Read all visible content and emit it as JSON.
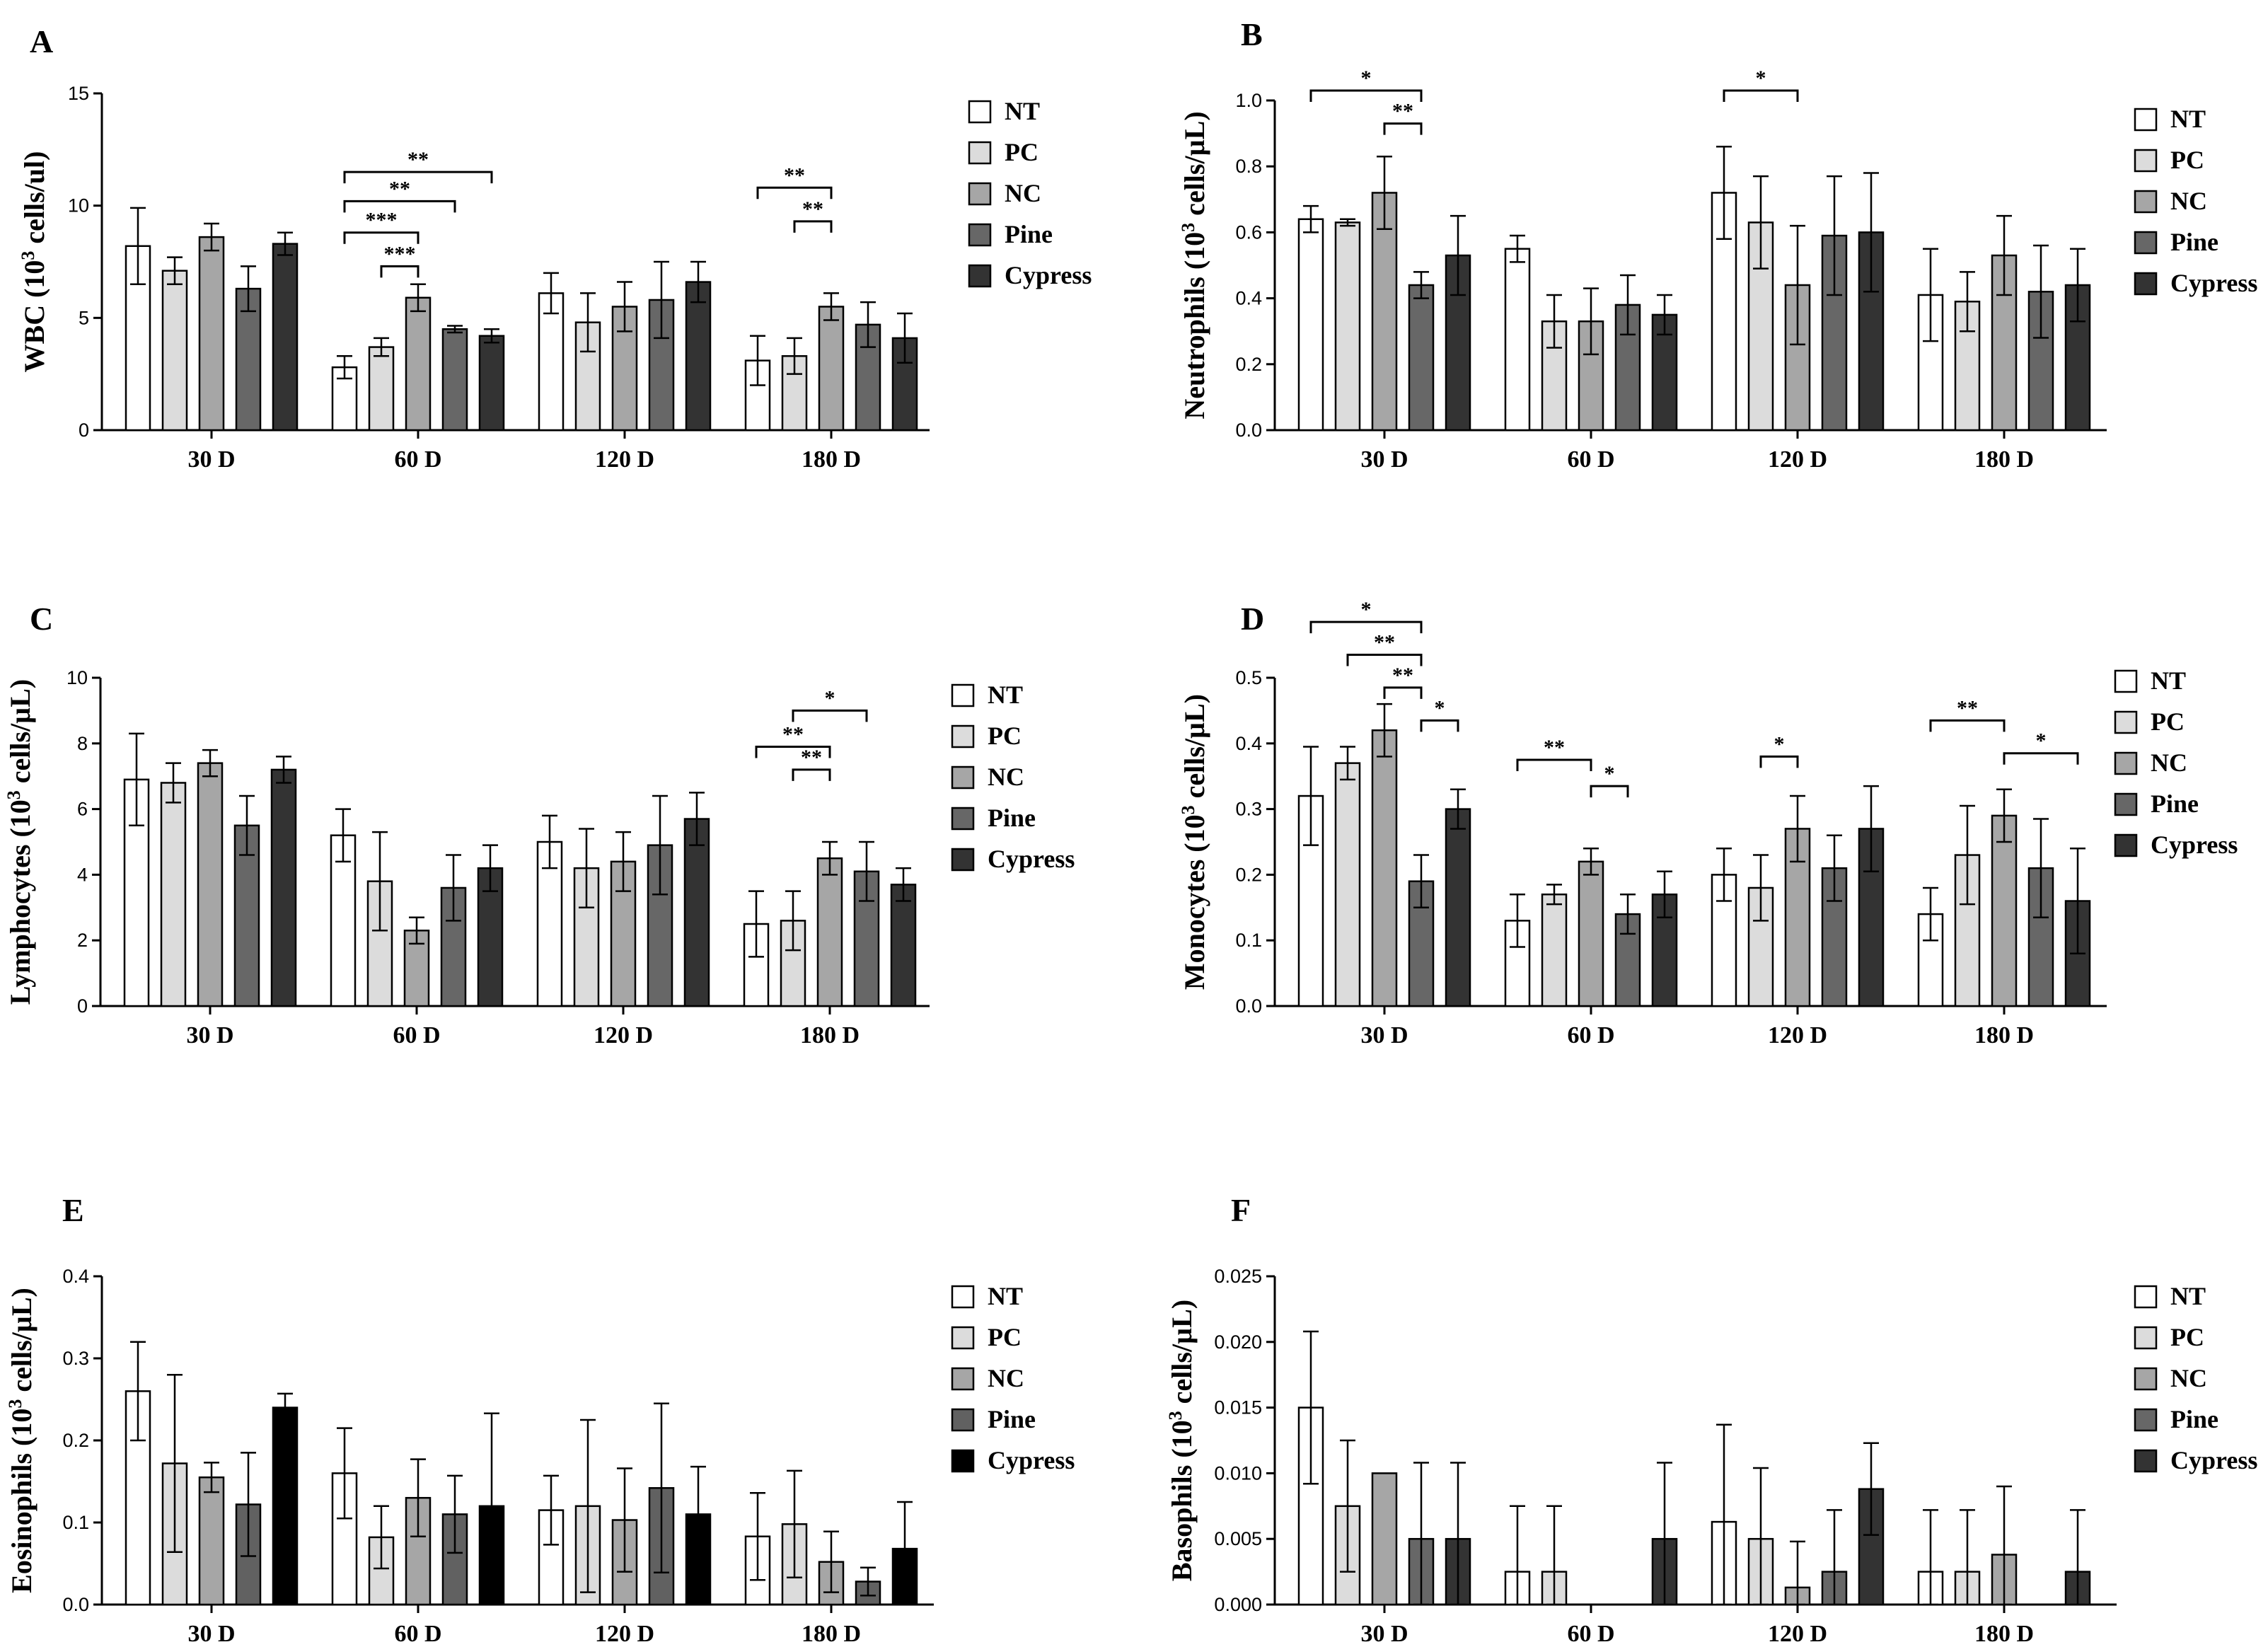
{
  "figure": {
    "categories": [
      "30 D",
      "60 D",
      "120 D",
      "180 D"
    ],
    "legend": [
      {
        "name": "NT",
        "color": "#ffffff"
      },
      {
        "name": "PC",
        "color": "#dcdcdc"
      },
      {
        "name": "NC",
        "color": "#a6a6a6"
      },
      {
        "name": "Pine",
        "color": "#676767"
      },
      {
        "name": "Cypress",
        "color": "#333333"
      }
    ]
  },
  "chart_data": [
    {
      "type": "bar",
      "panel": "A",
      "ylabel": "WBC (10",
      "ylabel_sup": "3",
      "ylabel_rest": " cells/ul)",
      "ylim": [
        0,
        15
      ],
      "yticks": [
        "0",
        "5",
        "10",
        "15"
      ],
      "ytick_values": [
        0,
        5,
        10,
        15
      ],
      "categories": [
        "30 D",
        "60 D",
        "120 D",
        "180 D"
      ],
      "series": [
        {
          "name": "NT",
          "values": [
            8.2,
            2.8,
            6.1,
            3.1
          ],
          "errors": [
            1.7,
            0.5,
            0.9,
            1.1
          ]
        },
        {
          "name": "PC",
          "values": [
            7.1,
            3.7,
            4.8,
            3.3
          ],
          "errors": [
            0.6,
            0.4,
            1.3,
            0.8
          ]
        },
        {
          "name": "NC",
          "values": [
            8.6,
            5.9,
            5.5,
            5.5
          ],
          "errors": [
            0.6,
            0.6,
            1.1,
            0.6
          ]
        },
        {
          "name": "Pine",
          "values": [
            6.3,
            4.5,
            5.8,
            4.7
          ],
          "errors": [
            1.0,
            0.15,
            1.7,
            1.0
          ]
        },
        {
          "name": "Cypress",
          "values": [
            8.3,
            4.2,
            6.6,
            4.1
          ],
          "errors": [
            0.5,
            0.3,
            0.9,
            1.1
          ]
        }
      ],
      "significance": [
        {
          "group": 1,
          "from": 0,
          "to": 4,
          "label": "**",
          "y": 11.5
        },
        {
          "group": 1,
          "from": 0,
          "to": 3,
          "label": "**",
          "y": 10.2
        },
        {
          "group": 1,
          "from": 0,
          "to": 2,
          "label": "***",
          "y": 8.8
        },
        {
          "group": 1,
          "from": 1,
          "to": 2,
          "label": "***",
          "y": 7.3
        },
        {
          "group": 3,
          "from": 0,
          "to": 2,
          "label": "**",
          "y": 10.8
        },
        {
          "group": 3,
          "from": 1,
          "to": 2,
          "label": "**",
          "y": 9.3
        }
      ]
    },
    {
      "type": "bar",
      "panel": "B",
      "ylabel": "Neutrophils (10",
      "ylabel_sup": "3",
      "ylabel_rest": " cells/µL)",
      "ylim": [
        0,
        1.0
      ],
      "yticks": [
        "0.0",
        "0.2",
        "0.4",
        "0.6",
        "0.8",
        "1.0"
      ],
      "ytick_values": [
        0,
        0.2,
        0.4,
        0.6,
        0.8,
        1.0
      ],
      "categories": [
        "30 D",
        "60 D",
        "120 D",
        "180 D"
      ],
      "series": [
        {
          "name": "NT",
          "values": [
            0.64,
            0.55,
            0.72,
            0.41
          ],
          "errors": [
            0.04,
            0.04,
            0.14,
            0.14
          ]
        },
        {
          "name": "PC",
          "values": [
            0.63,
            0.33,
            0.63,
            0.39
          ],
          "errors": [
            0.01,
            0.08,
            0.14,
            0.09
          ]
        },
        {
          "name": "NC",
          "values": [
            0.72,
            0.33,
            0.44,
            0.53
          ],
          "errors": [
            0.11,
            0.1,
            0.18,
            0.12
          ]
        },
        {
          "name": "Pine",
          "values": [
            0.44,
            0.38,
            0.59,
            0.42
          ],
          "errors": [
            0.04,
            0.09,
            0.18,
            0.14
          ]
        },
        {
          "name": "Cypress",
          "values": [
            0.53,
            0.35,
            0.6,
            0.44
          ],
          "errors": [
            0.12,
            0.06,
            0.18,
            0.11
          ]
        }
      ],
      "significance": [
        {
          "group": 0,
          "from": 0,
          "to": 3,
          "label": "*",
          "y": 1.03
        },
        {
          "group": 0,
          "from": 2,
          "to": 3,
          "label": "**",
          "y": 0.93
        },
        {
          "group": 2,
          "from": 0,
          "to": 2,
          "label": "*",
          "y": 1.03
        }
      ]
    },
    {
      "type": "bar",
      "panel": "C",
      "ylabel": "Lymphocytes (10",
      "ylabel_sup": "3",
      "ylabel_rest": " cells/µL)",
      "ylim": [
        0,
        10
      ],
      "yticks": [
        "0",
        "2",
        "4",
        "6",
        "8",
        "10"
      ],
      "ytick_values": [
        0,
        2,
        4,
        6,
        8,
        10
      ],
      "categories": [
        "30 D",
        "60 D",
        "120 D",
        "180 D"
      ],
      "series": [
        {
          "name": "NT",
          "values": [
            6.9,
            5.2,
            5.0,
            2.5
          ],
          "errors": [
            1.4,
            0.8,
            0.8,
            1.0
          ]
        },
        {
          "name": "PC",
          "values": [
            6.8,
            3.8,
            4.2,
            2.6
          ],
          "errors": [
            0.6,
            1.5,
            1.2,
            0.9
          ]
        },
        {
          "name": "NC",
          "values": [
            7.4,
            2.3,
            4.4,
            4.5
          ],
          "errors": [
            0.4,
            0.4,
            0.9,
            0.5
          ]
        },
        {
          "name": "Pine",
          "values": [
            5.5,
            3.6,
            4.9,
            4.1
          ],
          "errors": [
            0.9,
            1.0,
            1.5,
            0.9
          ]
        },
        {
          "name": "Cypress",
          "values": [
            7.2,
            4.2,
            5.7,
            3.7
          ],
          "errors": [
            0.4,
            0.7,
            0.8,
            0.5
          ]
        }
      ],
      "significance": [
        {
          "group": 3,
          "from": 1,
          "to": 3,
          "label": "*",
          "y": 9.0
        },
        {
          "group": 3,
          "from": 0,
          "to": 2,
          "label": "**",
          "y": 7.9
        },
        {
          "group": 3,
          "from": 1,
          "to": 2,
          "label": "**",
          "y": 7.2
        }
      ]
    },
    {
      "type": "bar",
      "panel": "D",
      "ylabel": "Monocytes (10",
      "ylabel_sup": "3",
      "ylabel_rest": " cells/µL)",
      "ylim": [
        0,
        0.5
      ],
      "yticks": [
        "0.0",
        "0.1",
        "0.2",
        "0.3",
        "0.4",
        "0.5"
      ],
      "ytick_values": [
        0,
        0.1,
        0.2,
        0.3,
        0.4,
        0.5
      ],
      "categories": [
        "30 D",
        "60 D",
        "120 D",
        "180 D"
      ],
      "series": [
        {
          "name": "NT",
          "values": [
            0.32,
            0.13,
            0.2,
            0.14
          ],
          "errors": [
            0.075,
            0.04,
            0.04,
            0.04
          ]
        },
        {
          "name": "PC",
          "values": [
            0.37,
            0.17,
            0.18,
            0.23
          ],
          "errors": [
            0.025,
            0.015,
            0.05,
            0.075
          ]
        },
        {
          "name": "NC",
          "values": [
            0.42,
            0.22,
            0.27,
            0.29
          ],
          "errors": [
            0.04,
            0.02,
            0.05,
            0.04
          ]
        },
        {
          "name": "Pine",
          "values": [
            0.19,
            0.14,
            0.21,
            0.21
          ],
          "errors": [
            0.04,
            0.03,
            0.05,
            0.075
          ]
        },
        {
          "name": "Cypress",
          "values": [
            0.3,
            0.17,
            0.27,
            0.16
          ],
          "errors": [
            0.03,
            0.035,
            0.065,
            0.08
          ]
        }
      ],
      "significance": [
        {
          "group": 0,
          "from": 0,
          "to": 3,
          "label": "*",
          "y": 0.585
        },
        {
          "group": 0,
          "from": 1,
          "to": 3,
          "label": "**",
          "y": 0.535
        },
        {
          "group": 0,
          "from": 2,
          "to": 3,
          "label": "**",
          "y": 0.485
        },
        {
          "group": 0,
          "from": 3,
          "to": 4,
          "label": "*",
          "y": 0.435
        },
        {
          "group": 1,
          "from": 0,
          "to": 2,
          "label": "**",
          "y": 0.375
        },
        {
          "group": 1,
          "from": 2,
          "to": 3,
          "label": "*",
          "y": 0.335
        },
        {
          "group": 2,
          "from": 1,
          "to": 2,
          "label": "*",
          "y": 0.38
        },
        {
          "group": 3,
          "from": 0,
          "to": 2,
          "label": "**",
          "y": 0.435
        },
        {
          "group": 3,
          "from": 2,
          "to": 4,
          "label": "*",
          "y": 0.385
        }
      ]
    },
    {
      "type": "bar",
      "panel": "E",
      "ylabel": "Eosinophils (10",
      "ylabel_sup": "3",
      "ylabel_rest": " cells/µL)",
      "ylim": [
        0,
        0.4
      ],
      "yticks": [
        "0.0",
        "0.1",
        "0.2",
        "0.3",
        "0.4"
      ],
      "ytick_values": [
        0,
        0.1,
        0.2,
        0.3,
        0.4
      ],
      "categories": [
        "30 D",
        "60 D",
        "120 D",
        "180 D"
      ],
      "series": [
        {
          "name": "NT",
          "values": [
            0.26,
            0.16,
            0.115,
            0.083
          ],
          "errors": [
            0.06,
            0.055,
            0.042,
            0.053
          ]
        },
        {
          "name": "PC",
          "values": [
            0.172,
            0.082,
            0.12,
            0.098
          ],
          "errors": [
            0.108,
            0.038,
            0.105,
            0.065
          ]
        },
        {
          "name": "NC",
          "values": [
            0.155,
            0.13,
            0.103,
            0.052
          ],
          "errors": [
            0.018,
            0.047,
            0.063,
            0.037
          ]
        },
        {
          "name": "Pine",
          "values": [
            0.122,
            0.11,
            0.142,
            0.028
          ],
          "errors": [
            0.063,
            0.047,
            0.103,
            0.017
          ]
        },
        {
          "name": "Cypress",
          "values": [
            0.24,
            0.12,
            0.11,
            0.068
          ],
          "errors": [
            0.017,
            0.113,
            0.058,
            0.057
          ]
        }
      ],
      "significance": []
    },
    {
      "type": "bar",
      "panel": "F",
      "ylabel": "Basophils (10",
      "ylabel_sup": "3",
      "ylabel_rest": " cells/µL)",
      "ylim": [
        0,
        0.025
      ],
      "yticks": [
        "0.000",
        "0.005",
        "0.010",
        "0.015",
        "0.020",
        "0.025"
      ],
      "ytick_values": [
        0,
        0.005,
        0.01,
        0.015,
        0.02,
        0.025
      ],
      "categories": [
        "30 D",
        "60 D",
        "120 D",
        "180 D"
      ],
      "series": [
        {
          "name": "NT",
          "values": [
            0.015,
            0.0025,
            0.0063,
            0.0025
          ],
          "errors": [
            0.0058,
            0.005,
            0.0074,
            0.0047
          ]
        },
        {
          "name": "PC",
          "values": [
            0.0075,
            0.0025,
            0.005,
            0.0025
          ],
          "errors": [
            0.005,
            0.005,
            0.0054,
            0.0047
          ]
        },
        {
          "name": "NC",
          "values": [
            0.01,
            0,
            0.0013,
            0.0038
          ],
          "errors": [
            0,
            0,
            0.0035,
            0.0052
          ]
        },
        {
          "name": "Pine",
          "values": [
            0.005,
            0,
            0.0025,
            0
          ],
          "errors": [
            0.0058,
            0,
            0.0047,
            0
          ]
        },
        {
          "name": "Cypress",
          "values": [
            0.005,
            0.005,
            0.0088,
            0.0025
          ],
          "errors": [
            0.0058,
            0.0058,
            0.0035,
            0.0047
          ]
        }
      ],
      "significance": []
    }
  ]
}
